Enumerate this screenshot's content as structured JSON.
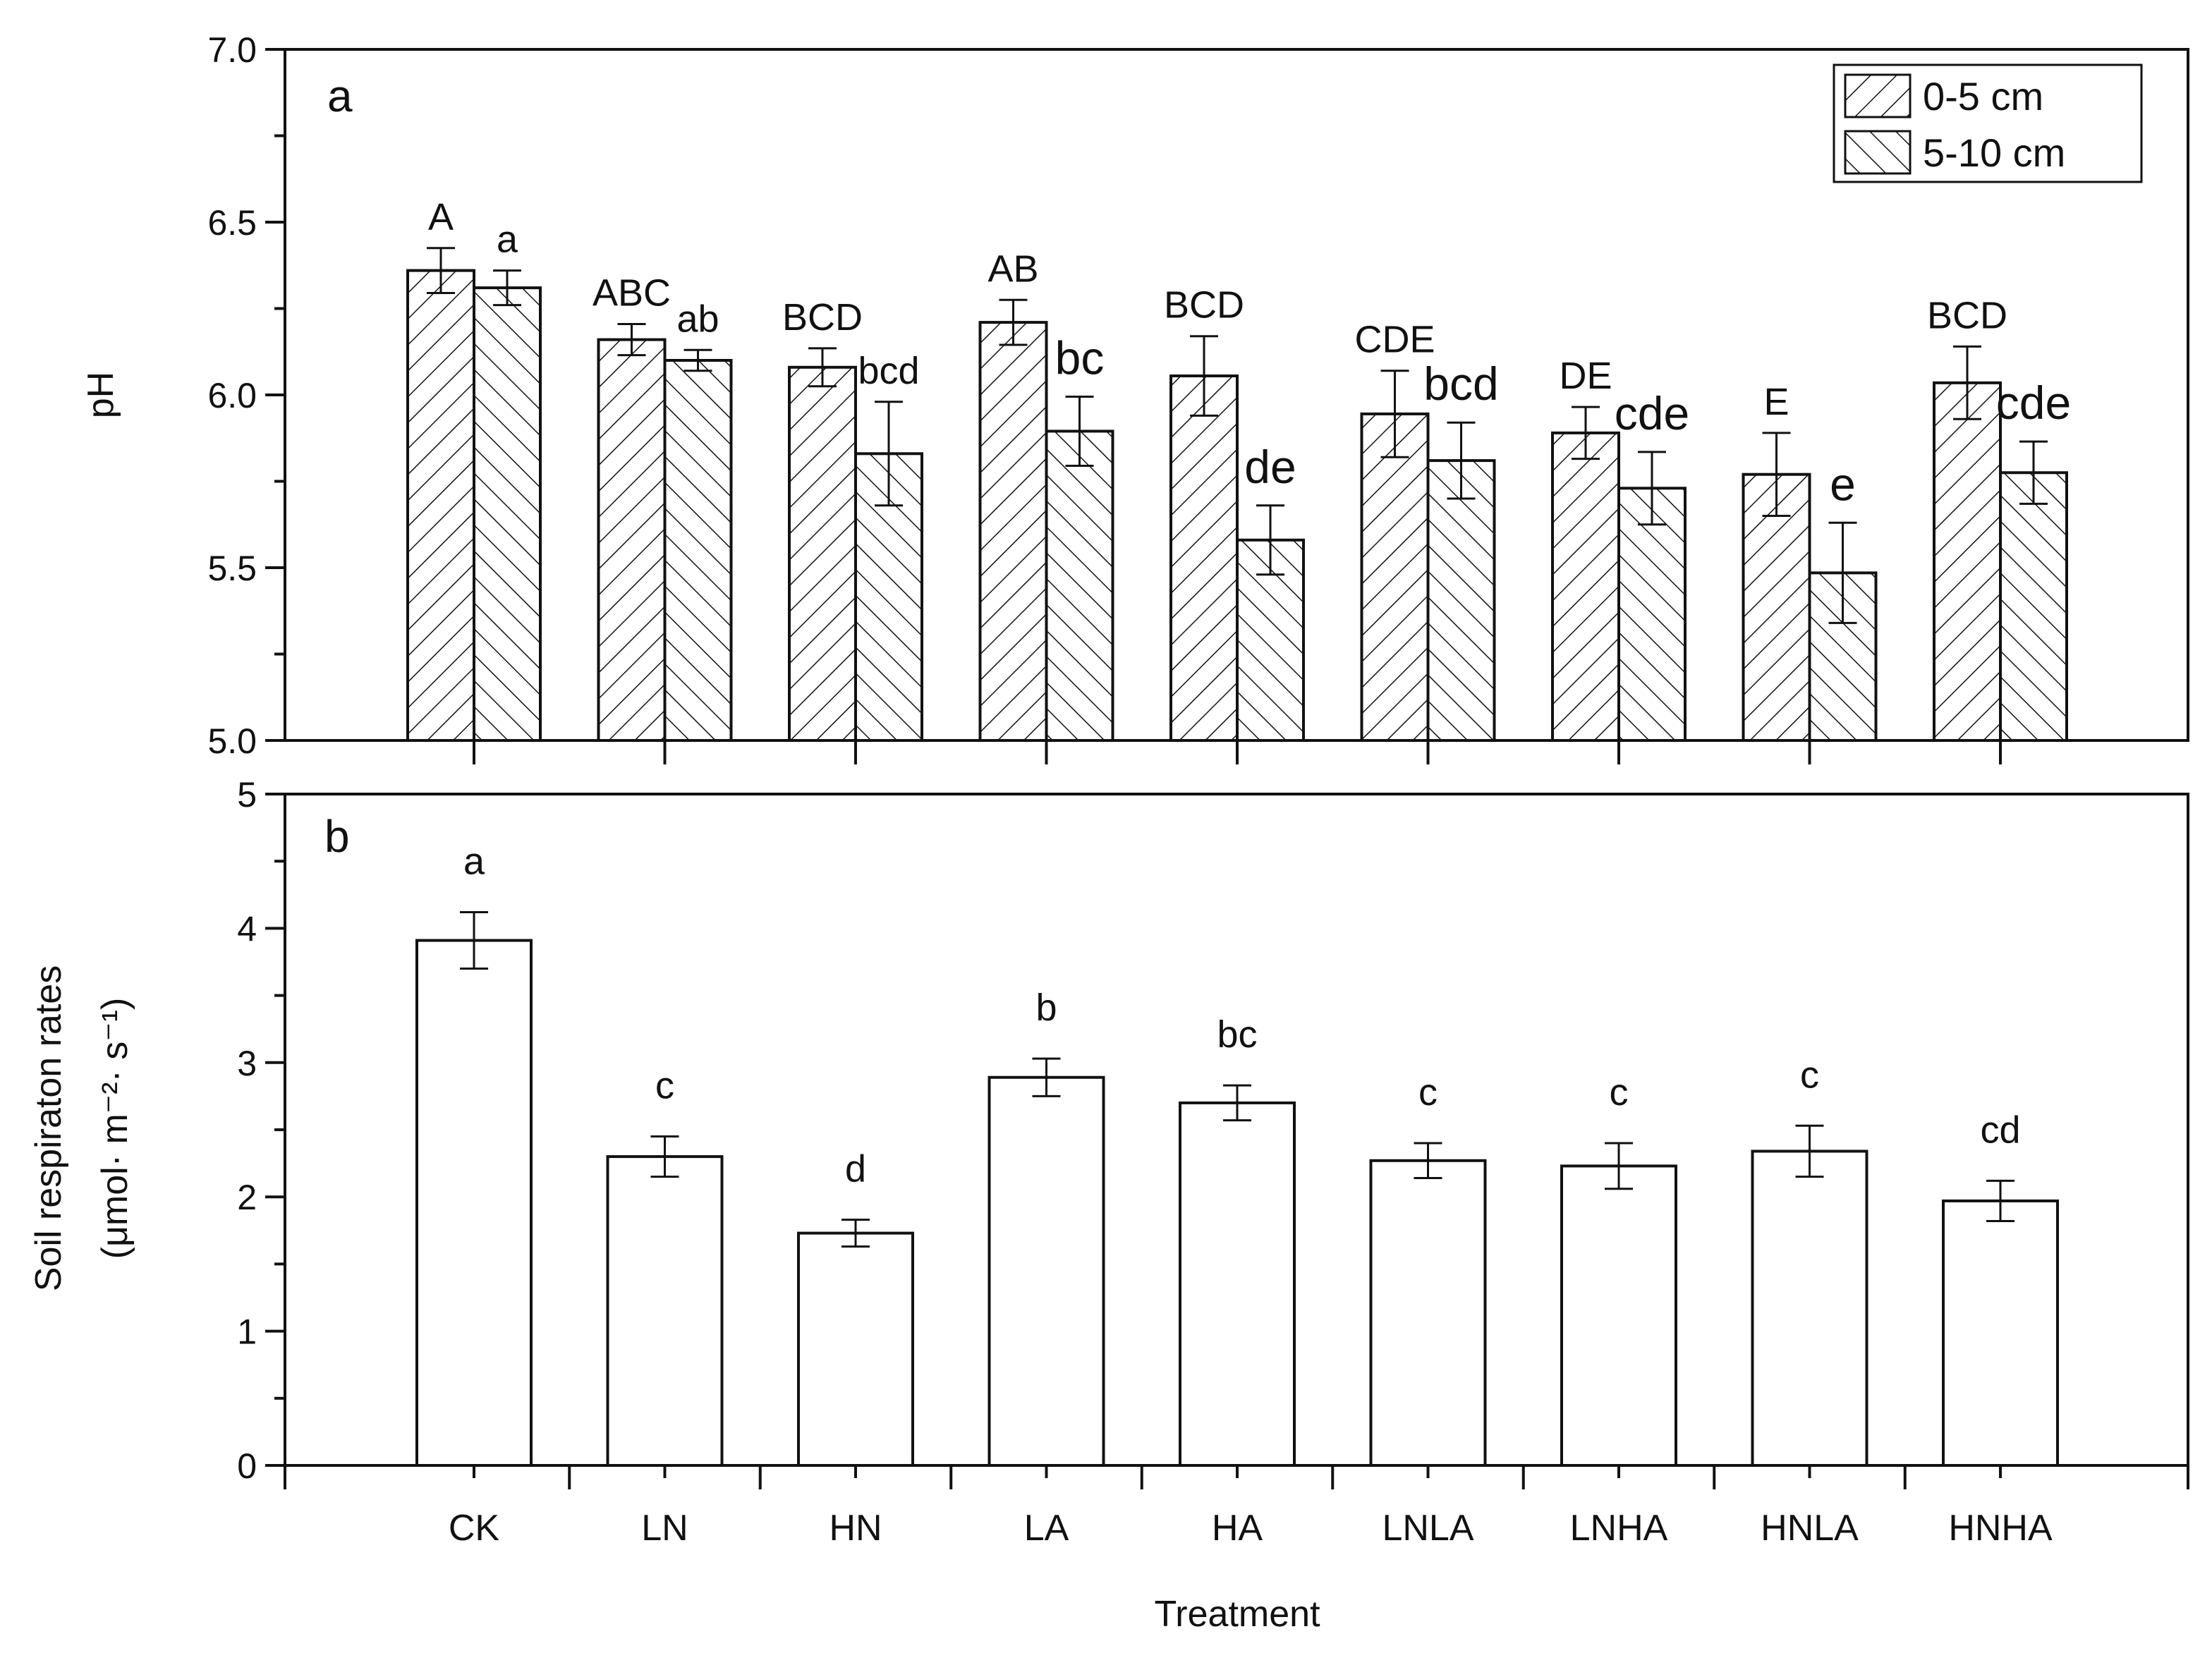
{
  "chart_data": [
    {
      "panel": "a",
      "type": "bar",
      "ylabel": "pH",
      "ylim": [
        5.0,
        7.0
      ],
      "yticks": [
        "5.0",
        "5.5",
        "6.0",
        "6.5",
        "7.0"
      ],
      "categories": [
        "CK",
        "LN",
        "HN",
        "LA",
        "HA",
        "LNLA",
        "LNHA",
        "HNLA",
        "HNHA"
      ],
      "series": [
        {
          "name": "0-5 cm",
          "pattern": "forward-hatch",
          "values": [
            6.36,
            6.16,
            6.08,
            6.21,
            6.055,
            5.945,
            5.89,
            5.77,
            6.035
          ],
          "errors": [
            0.065,
            0.045,
            0.055,
            0.065,
            0.115,
            0.125,
            0.075,
            0.12,
            0.105
          ],
          "letters": [
            "A",
            "ABC",
            "BCD",
            "AB",
            "BCD",
            "CDE",
            "DE",
            "E",
            "BCD"
          ],
          "letter_sizes": [
            "s",
            "s",
            "s",
            "s",
            "s",
            "s",
            "s",
            "s",
            "s"
          ]
        },
        {
          "name": "5-10 cm",
          "pattern": "backward-hatch",
          "values": [
            6.31,
            6.1,
            5.83,
            5.895,
            5.58,
            5.81,
            5.73,
            5.485,
            5.775
          ],
          "errors": [
            0.05,
            0.03,
            0.15,
            0.1,
            0.1,
            0.11,
            0.105,
            0.145,
            0.09
          ],
          "letters": [
            "a",
            "ab",
            "bcd",
            "bc",
            "de",
            "bcd",
            "cde",
            "e",
            "cde"
          ],
          "letter_sizes": [
            "s",
            "s",
            "s",
            "l",
            "l",
            "l",
            "l",
            "l",
            "l"
          ]
        }
      ],
      "legend": {
        "position": "top-right",
        "entries": [
          "0-5 cm",
          "5-10 cm"
        ]
      },
      "panel_label": "a"
    },
    {
      "panel": "b",
      "type": "bar",
      "xlabel": "Treatment",
      "ylabel_line1": "Soil respiraton rates",
      "ylabel_line2": "(μmol·  m⁻²·  s⁻¹)",
      "ylim": [
        0,
        5
      ],
      "yticks": [
        "0",
        "1",
        "2",
        "3",
        "4",
        "5"
      ],
      "categories": [
        "CK",
        "LN",
        "HN",
        "LA",
        "HA",
        "LNLA",
        "LNHA",
        "HNLA",
        "HNHA"
      ],
      "values": [
        3.91,
        2.3,
        1.73,
        2.89,
        2.7,
        2.27,
        2.23,
        2.34,
        1.97
      ],
      "errors": [
        0.21,
        0.15,
        0.1,
        0.14,
        0.13,
        0.13,
        0.17,
        0.19,
        0.15
      ],
      "letters": [
        "a",
        "c",
        "d",
        "b",
        "bc",
        "c",
        "c",
        "c",
        "cd"
      ],
      "panel_label": "b"
    }
  ]
}
